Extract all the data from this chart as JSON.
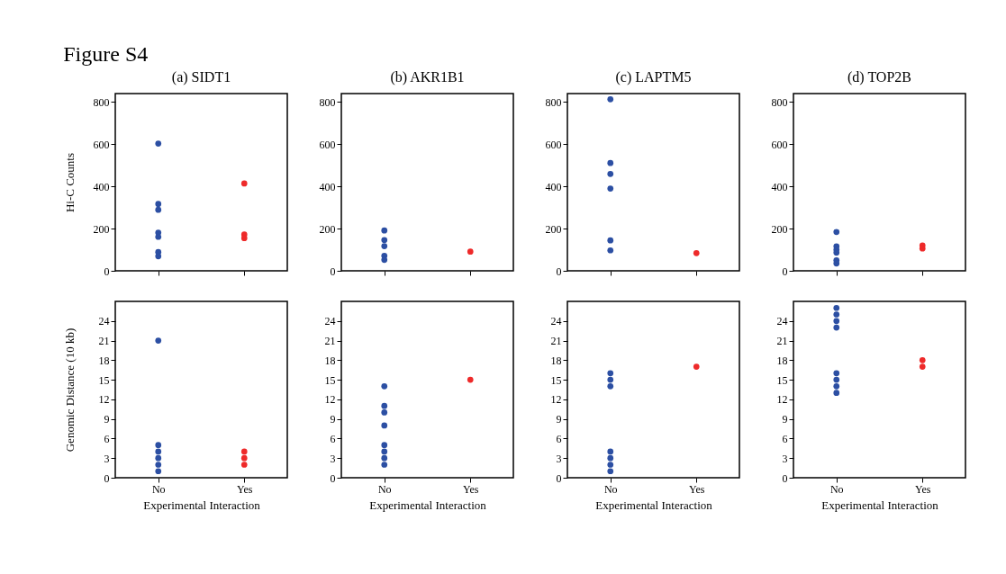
{
  "chart_data": [
    {
      "type": "scatter",
      "title": "(a) SIDT1",
      "ylabel": "Hi-C Counts",
      "annotations": [
        "Figure S4"
      ],
      "categories": [
        "No",
        "Yes"
      ],
      "ylim": [
        0,
        840
      ],
      "yticks": [
        0,
        200,
        400,
        600,
        800
      ],
      "tick_labels": "y",
      "grid": false,
      "series": [
        {
          "color": "#2c4fa3",
          "x": [
            "No",
            "No",
            "No",
            "No",
            "No",
            "No",
            "No"
          ],
          "values": [
            603,
            317,
            289,
            181,
            161,
            89,
            69
          ]
        },
        {
          "color": "#ee2a2a",
          "x": [
            "Yes",
            "Yes",
            "Yes"
          ],
          "values": [
            414,
            172,
            155
          ]
        }
      ]
    },
    {
      "type": "scatter",
      "title": "(b) AKR1B1",
      "categories": [
        "No",
        "Yes"
      ],
      "ylim": [
        0,
        840
      ],
      "yticks": [
        0,
        200,
        400,
        600,
        800
      ],
      "tick_labels": "y",
      "grid": false,
      "series": [
        {
          "color": "#2c4fa3",
          "x": [
            "No",
            "No",
            "No",
            "No",
            "No"
          ],
          "values": [
            191,
            146,
            117,
            71,
            52
          ]
        },
        {
          "color": "#ee2a2a",
          "x": [
            "Yes"
          ],
          "values": [
            91
          ]
        }
      ]
    },
    {
      "type": "scatter",
      "title": "(c) LAPTM5",
      "categories": [
        "No",
        "Yes"
      ],
      "ylim": [
        0,
        840
      ],
      "yticks": [
        0,
        200,
        400,
        600,
        800
      ],
      "tick_labels": "y",
      "grid": false,
      "series": [
        {
          "color": "#2c4fa3",
          "x": [
            "No",
            "No",
            "No",
            "No",
            "No",
            "No"
          ],
          "values": [
            813,
            511,
            459,
            390,
            144,
            97
          ]
        },
        {
          "color": "#ee2a2a",
          "x": [
            "Yes"
          ],
          "values": [
            84
          ]
        }
      ]
    },
    {
      "type": "scatter",
      "title": "(d) TOP2B",
      "categories": [
        "No",
        "Yes"
      ],
      "ylim": [
        0,
        840
      ],
      "yticks": [
        0,
        200,
        400,
        600,
        800
      ],
      "tick_labels": "y",
      "grid": false,
      "series": [
        {
          "color": "#2c4fa3",
          "x": [
            "No",
            "No",
            "No",
            "No",
            "No",
            "No"
          ],
          "values": [
            184,
            116,
            100,
            86,
            50,
            35
          ]
        },
        {
          "color": "#ee2a2a",
          "x": [
            "Yes",
            "Yes"
          ],
          "values": [
            120,
            106
          ]
        }
      ]
    },
    {
      "type": "scatter",
      "ylabel": "Genomic Distance (10 kb)",
      "xlabel": "Experimental Interaction",
      "categories": [
        "No",
        "Yes"
      ],
      "ylim": [
        0,
        27
      ],
      "yticks": [
        0,
        3,
        6,
        9,
        12,
        15,
        18,
        21,
        24
      ],
      "grid": false,
      "series": [
        {
          "color": "#2c4fa3",
          "x": [
            "No",
            "No",
            "No",
            "No",
            "No",
            "No"
          ],
          "values": [
            21,
            5,
            4,
            3,
            2,
            1
          ]
        },
        {
          "color": "#ee2a2a",
          "x": [
            "Yes",
            "Yes",
            "Yes"
          ],
          "values": [
            4,
            3,
            2
          ]
        }
      ]
    },
    {
      "type": "scatter",
      "xlabel": "Experimental Interaction",
      "categories": [
        "No",
        "Yes"
      ],
      "ylim": [
        0,
        27
      ],
      "yticks": [
        0,
        3,
        6,
        9,
        12,
        15,
        18,
        21,
        24
      ],
      "grid": false,
      "series": [
        {
          "color": "#2c4fa3",
          "x": [
            "No",
            "No",
            "No",
            "No",
            "No",
            "No",
            "No",
            "No"
          ],
          "values": [
            14,
            11,
            10,
            8,
            5,
            4,
            3,
            2
          ]
        },
        {
          "color": "#ee2a2a",
          "x": [
            "Yes"
          ],
          "values": [
            15
          ]
        }
      ]
    },
    {
      "type": "scatter",
      "xlabel": "Experimental Interaction",
      "categories": [
        "No",
        "Yes"
      ],
      "ylim": [
        0,
        27
      ],
      "yticks": [
        0,
        3,
        6,
        9,
        12,
        15,
        18,
        21,
        24
      ],
      "grid": false,
      "series": [
        {
          "color": "#2c4fa3",
          "x": [
            "No",
            "No",
            "No",
            "No",
            "No",
            "No",
            "No"
          ],
          "values": [
            16,
            15,
            14,
            4,
            3,
            2,
            1
          ]
        },
        {
          "color": "#ee2a2a",
          "x": [
            "Yes"
          ],
          "values": [
            17
          ]
        }
      ]
    },
    {
      "type": "scatter",
      "xlabel": "Experimental Interaction",
      "categories": [
        "No",
        "Yes"
      ],
      "ylim": [
        0,
        27
      ],
      "yticks": [
        0,
        3,
        6,
        9,
        12,
        15,
        18,
        21,
        24
      ],
      "grid": false,
      "series": [
        {
          "color": "#2c4fa3",
          "x": [
            "No",
            "No",
            "No",
            "No",
            "No",
            "No",
            "No",
            "No"
          ],
          "values": [
            26,
            25,
            24,
            23,
            16,
            15,
            14,
            13
          ]
        },
        {
          "color": "#ee2a2a",
          "x": [
            "Yes",
            "Yes"
          ],
          "values": [
            18,
            17
          ]
        }
      ]
    }
  ]
}
